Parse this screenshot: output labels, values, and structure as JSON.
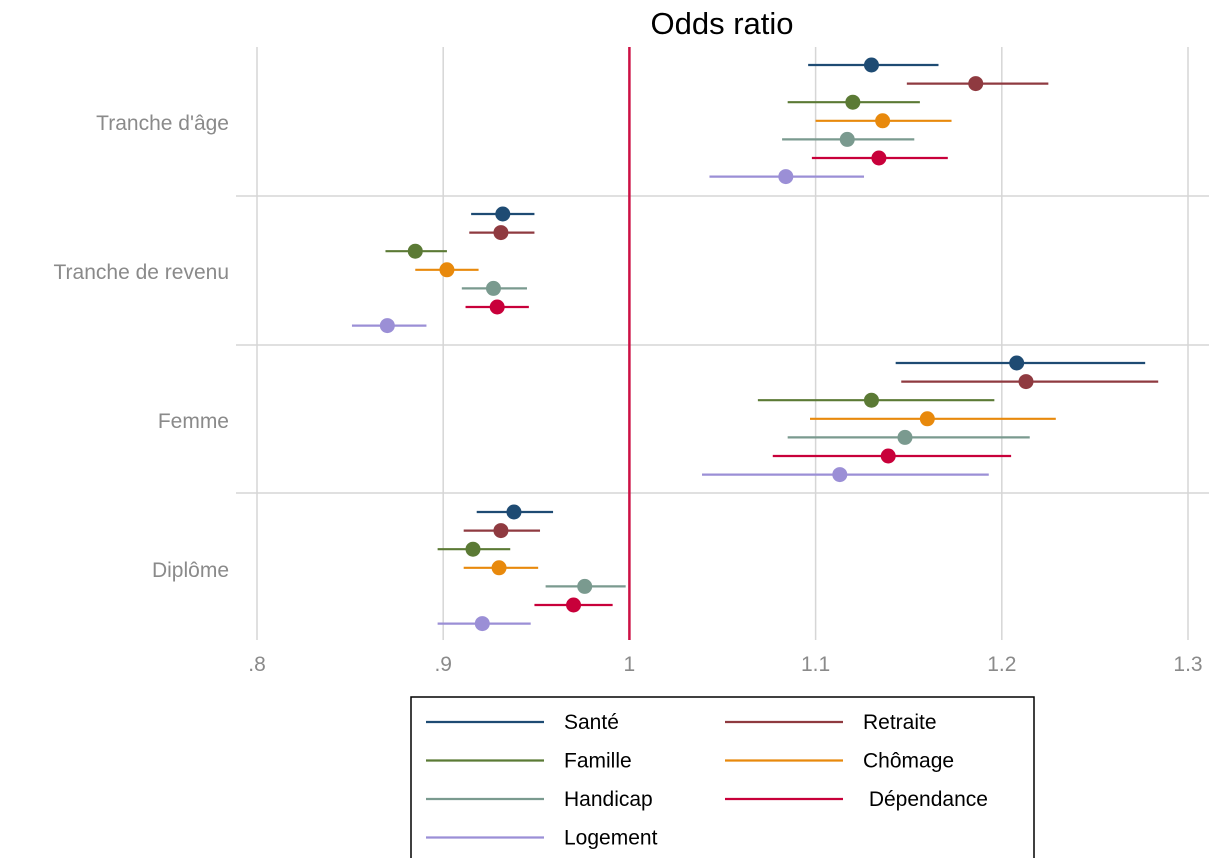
{
  "chart_data": {
    "type": "scatter",
    "subtype": "coefficient plot with confidence intervals",
    "title": "Odds ratio",
    "xlabel": "",
    "ylabel": "",
    "xlim": [
      0.8,
      1.3
    ],
    "xticks": [
      0.8,
      0.9,
      1.0,
      1.1,
      1.2,
      1.3
    ],
    "xtick_labels": [
      ".8",
      ".9",
      "1",
      "1.1",
      "1.2",
      "1.3"
    ],
    "reference_line": {
      "x": 1.0,
      "color": "#cc1144"
    },
    "grid": {
      "vertical": true,
      "horizontal_separators": true
    },
    "legend_position": "bottom-center",
    "categories": [
      "Tranche d'âge",
      "Tranche de revenu",
      "Femme",
      "Diplôme"
    ],
    "series": [
      {
        "name": "Santé",
        "color": "#1e4b73",
        "estimate": [
          1.13,
          0.932,
          1.208,
          0.938
        ],
        "lower": [
          1.096,
          0.915,
          1.143,
          0.918
        ],
        "upper": [
          1.166,
          0.949,
          1.277,
          0.959
        ]
      },
      {
        "name": "Retraite",
        "color": "#8f3a40",
        "estimate": [
          1.186,
          0.931,
          1.213,
          0.931
        ],
        "lower": [
          1.149,
          0.914,
          1.146,
          0.911
        ],
        "upper": [
          1.225,
          0.949,
          1.284,
          0.952
        ]
      },
      {
        "name": "Famille",
        "color": "#5b7a35",
        "estimate": [
          1.12,
          0.885,
          1.13,
          0.916
        ],
        "lower": [
          1.085,
          0.869,
          1.069,
          0.897
        ],
        "upper": [
          1.156,
          0.902,
          1.196,
          0.936
        ]
      },
      {
        "name": "Chômage",
        "color": "#e8890c",
        "estimate": [
          1.136,
          0.902,
          1.16,
          0.93
        ],
        "lower": [
          1.1,
          0.885,
          1.097,
          0.911
        ],
        "upper": [
          1.173,
          0.919,
          1.229,
          0.951
        ]
      },
      {
        "name": "Handicap",
        "color": "#7a9a8f",
        "estimate": [
          1.117,
          0.927,
          1.148,
          0.976
        ],
        "lower": [
          1.082,
          0.91,
          1.085,
          0.955
        ],
        "upper": [
          1.153,
          0.945,
          1.215,
          0.998
        ]
      },
      {
        "name": " Dépendance",
        "color": "#c8003a",
        "estimate": [
          1.134,
          0.929,
          1.139,
          0.97
        ],
        "lower": [
          1.098,
          0.912,
          1.077,
          0.949
        ],
        "upper": [
          1.171,
          0.946,
          1.205,
          0.991
        ]
      },
      {
        "name": "Logement",
        "color": "#9b8fd6",
        "estimate": [
          1.084,
          0.87,
          1.113,
          0.921
        ],
        "lower": [
          1.043,
          0.851,
          1.039,
          0.897
        ],
        "upper": [
          1.126,
          0.891,
          1.193,
          0.947
        ]
      }
    ]
  }
}
